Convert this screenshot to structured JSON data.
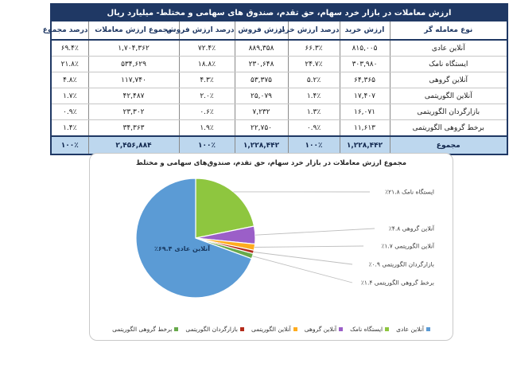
{
  "table": {
    "title": "ارزش معاملات در بازار خرد سهام، حق تقدم، صندوق های سهامی و مختلط- میلیارد ریال",
    "columns": [
      "نوع معامله گر",
      "ارزش خرید",
      "درصد ارزش خرید",
      "ارزش فروش",
      "درصد ارزش فروش",
      "مجموع ارزش معاملات",
      "درصد مجموع"
    ],
    "rows": [
      [
        "آنلاین عادی",
        "۸۱۵,۰۰۵",
        "۶۶.۳٪",
        "۸۸۹,۳۵۸",
        "۷۲.۴٪",
        "۱,۷۰۴,۳۶۲",
        "۶۹.۴٪"
      ],
      [
        "ایستگاه نامک",
        "۳۰۳,۹۸۰",
        "۲۴.۷٪",
        "۲۳۰,۶۴۸",
        "۱۸.۸٪",
        "۵۳۴,۶۲۹",
        "۲۱.۸٪"
      ],
      [
        "آنلاین گروهی",
        "۶۴,۳۶۵",
        "۵.۲٪",
        "۵۳,۳۷۵",
        "۴.۳٪",
        "۱۱۷,۷۴۰",
        "۴.۸٪"
      ],
      [
        "آنلاین الگوریتمی",
        "۱۷,۴۰۷",
        "۱.۴٪",
        "۲۵,۰۷۹",
        "۲.۰٪",
        "۴۲,۴۸۷",
        "۱.۷٪"
      ],
      [
        "بازارگردان الگوریتمی",
        "۱۶,۰۷۱",
        "۱.۳٪",
        "۷,۲۳۲",
        "۰.۶٪",
        "۲۳,۳۰۲",
        "۰.۹٪"
      ],
      [
        "برخط گروهی الگوریتمی",
        "۱۱,۶۱۳",
        "۰.۹٪",
        "۲۲,۷۵۰",
        "۱.۹٪",
        "۳۴,۳۶۳",
        "۱.۴٪"
      ]
    ],
    "total_row": [
      "مجموع",
      "۱,۲۲۸,۴۴۲",
      "۱۰۰٪",
      "۱,۲۲۸,۴۴۲",
      "۱۰۰٪",
      "۲,۴۵۶,۸۸۴",
      "۱۰۰٪"
    ]
  },
  "chart_data": {
    "type": "pie",
    "title": "مجموع ارزش معاملات در بازار خرد سهام، حق تقدم، صندوق‌های سهامی و مختلط",
    "labels": [
      "آنلاین عادی",
      "ایستگاه نامک",
      "آنلاین گروهی",
      "آنلاین الگوریتمی",
      "بازارگردان الگوریتمی",
      "برخط گروهی الگوریتمی"
    ],
    "values": [
      69.4,
      21.8,
      4.8,
      1.7,
      0.9,
      1.4
    ],
    "value_labels": [
      "۶۹.۴٪",
      "۲۱.۸٪",
      "۴.۸٪",
      "۱.۷٪",
      "۰.۹٪",
      "۱.۴٪"
    ],
    "colors": [
      "#5B9BD5",
      "#8EC63F",
      "#9B5FC8",
      "#FFAC1E",
      "#B42B1B",
      "#67A94B"
    ],
    "legend_position": "bottom",
    "label_color_inside": "#17375E",
    "colors_meta": {
      "header_navy": "#1F3864",
      "total_row_bg": "#BDD7EE",
      "leader_line": "#bfbfbf"
    }
  }
}
